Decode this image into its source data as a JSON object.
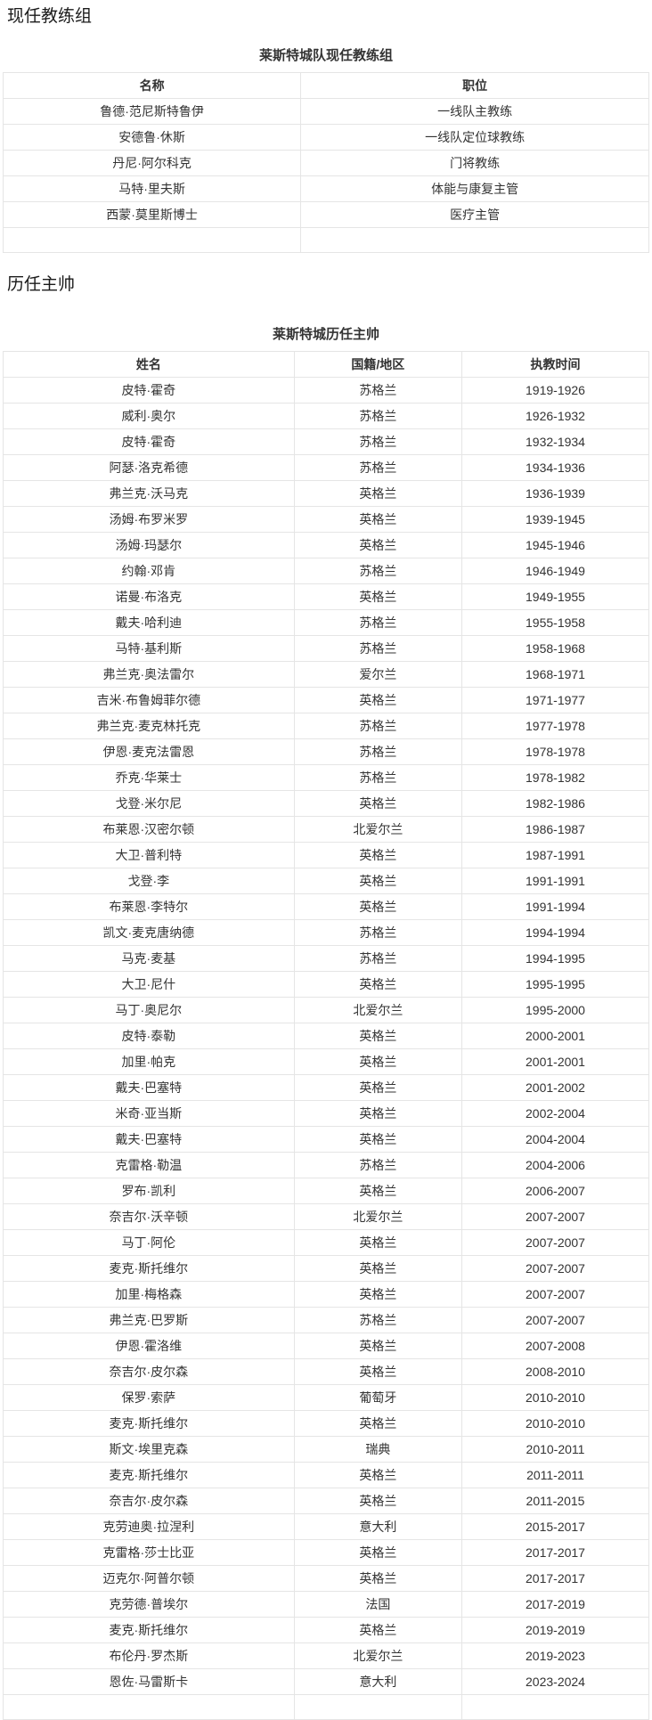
{
  "colors": {
    "background": "#ffffff",
    "text": "#333333",
    "heading": "#1a1a1a",
    "table_border": "#e5e5e5"
  },
  "sections": [
    {
      "heading": "现任教练组",
      "table": {
        "title": "莱斯特城队现任教练组",
        "headers": [
          "名称",
          "职位"
        ],
        "rows": [
          [
            "鲁德·范尼斯特鲁伊",
            "一线队主教练"
          ],
          [
            "安德鲁·休斯",
            "一线队定位球教练"
          ],
          [
            "丹尼·阿尔科克",
            "门将教练"
          ],
          [
            "马特·里夫斯",
            "体能与康复主管"
          ],
          [
            "西蒙·莫里斯博士",
            "医疗主管"
          ]
        ],
        "empty_row": true
      }
    },
    {
      "heading": "历任主帅",
      "table": {
        "title": "莱斯特城历任主帅",
        "headers": [
          "姓名",
          "国籍/地区",
          "执教时间"
        ],
        "rows": [
          [
            "皮特·霍奇",
            "苏格兰",
            "1919-1926"
          ],
          [
            "威利·奥尔",
            "苏格兰",
            "1926-1932"
          ],
          [
            "皮特·霍奇",
            "苏格兰",
            "1932-1934"
          ],
          [
            "阿瑟·洛克希德",
            "苏格兰",
            "1934-1936"
          ],
          [
            "弗兰克·沃马克",
            "英格兰",
            "1936-1939"
          ],
          [
            "汤姆·布罗米罗",
            "英格兰",
            "1939-1945"
          ],
          [
            "汤姆·玛瑟尔",
            "英格兰",
            "1945-1946"
          ],
          [
            "约翰·邓肯",
            "苏格兰",
            "1946-1949"
          ],
          [
            "诺曼·布洛克",
            "英格兰",
            "1949-1955"
          ],
          [
            "戴夫·哈利迪",
            "苏格兰",
            "1955-1958"
          ],
          [
            "马特·基利斯",
            "苏格兰",
            "1958-1968"
          ],
          [
            "弗兰克·奥法雷尔",
            "爱尔兰",
            "1968-1971"
          ],
          [
            "吉米·布鲁姆菲尔德",
            "英格兰",
            "1971-1977"
          ],
          [
            "弗兰克·麦克林托克",
            "苏格兰",
            "1977-1978"
          ],
          [
            "伊恩·麦克法雷恩",
            "苏格兰",
            "1978-1978"
          ],
          [
            "乔克·华莱士",
            "苏格兰",
            "1978-1982"
          ],
          [
            "戈登·米尔尼",
            "英格兰",
            "1982-1986"
          ],
          [
            "布莱恩·汉密尔顿",
            "北爱尔兰",
            "1986-1987"
          ],
          [
            "大卫·普利特",
            "英格兰",
            "1987-1991"
          ],
          [
            "戈登·李",
            "英格兰",
            "1991-1991"
          ],
          [
            "布莱恩·李特尔",
            "英格兰",
            "1991-1994"
          ],
          [
            "凯文·麦克唐纳德",
            "苏格兰",
            "1994-1994"
          ],
          [
            "马克·麦基",
            "苏格兰",
            "1994-1995"
          ],
          [
            "大卫·尼什",
            "英格兰",
            "1995-1995"
          ],
          [
            "马丁·奥尼尔",
            "北爱尔兰",
            "1995-2000"
          ],
          [
            "皮特·泰勒",
            "英格兰",
            "2000-2001"
          ],
          [
            "加里·帕克",
            "英格兰",
            "2001-2001"
          ],
          [
            "戴夫·巴塞特",
            "英格兰",
            "2001-2002"
          ],
          [
            "米奇·亚当斯",
            "英格兰",
            "2002-2004"
          ],
          [
            "戴夫·巴塞特",
            "英格兰",
            "2004-2004"
          ],
          [
            "克雷格·勒温",
            "苏格兰",
            "2004-2006"
          ],
          [
            "罗布·凯利",
            "英格兰",
            "2006-2007"
          ],
          [
            "奈吉尔·沃辛顿",
            "北爱尔兰",
            "2007-2007"
          ],
          [
            "马丁·阿伦",
            "英格兰",
            "2007-2007"
          ],
          [
            "麦克·斯托维尔",
            "英格兰",
            "2007-2007"
          ],
          [
            "加里·梅格森",
            "英格兰",
            "2007-2007"
          ],
          [
            "弗兰克·巴罗斯",
            "苏格兰",
            "2007-2007"
          ],
          [
            "伊恩·霍洛维",
            "英格兰",
            "2007-2008"
          ],
          [
            "奈吉尔·皮尔森",
            "英格兰",
            "2008-2010"
          ],
          [
            "保罗·索萨",
            "葡萄牙",
            "2010-2010"
          ],
          [
            "麦克·斯托维尔",
            "英格兰",
            "2010-2010"
          ],
          [
            "斯文·埃里克森",
            "瑞典",
            "2010-2011"
          ],
          [
            "麦克·斯托维尔",
            "英格兰",
            "2011-2011"
          ],
          [
            "奈吉尔·皮尔森",
            "英格兰",
            "2011-2015"
          ],
          [
            "克劳迪奥·拉涅利",
            "意大利",
            "2015-2017"
          ],
          [
            "克雷格·莎士比亚",
            "英格兰",
            "2017-2017"
          ],
          [
            "迈克尔·阿普尔顿",
            "英格兰",
            "2017-2017"
          ],
          [
            "克劳德·普埃尔",
            "法国",
            "2017-2019"
          ],
          [
            "麦克·斯托维尔",
            "英格兰",
            "2019-2019"
          ],
          [
            "布伦丹·罗杰斯",
            "北爱尔兰",
            "2019-2023"
          ],
          [
            "恩佐·马雷斯卡",
            "意大利",
            "2023-2024"
          ]
        ],
        "empty_row": true
      }
    }
  ]
}
